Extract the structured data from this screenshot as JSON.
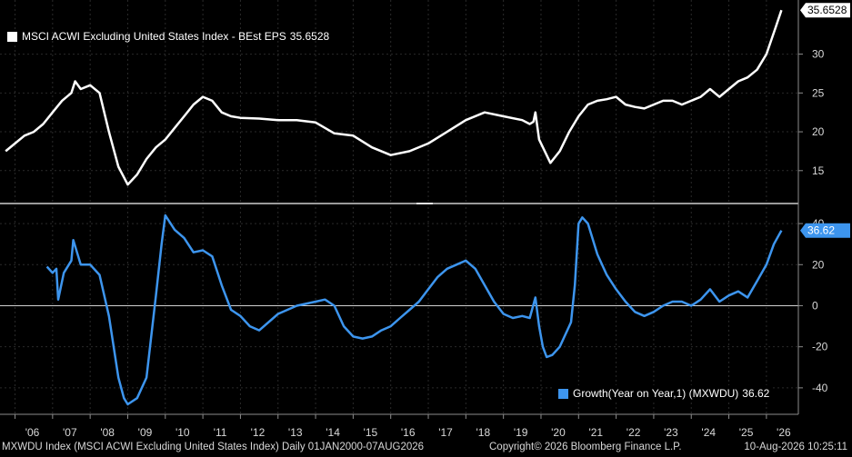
{
  "chart_data": [
    {
      "type": "line",
      "legend": {
        "label": "MSCI ACWI Excluding United States Index - BEst EPS",
        "value": "35.6528"
      },
      "last_value_label": "35.6528",
      "y_ticks": [
        "15",
        "20",
        "25",
        "30"
      ],
      "ylim": [
        11,
        36.5
      ],
      "color": "#ffffff",
      "series": [
        {
          "name": "MSCI ACWI Excluding United States Index - BEst EPS",
          "x": [
            2005.75,
            2006.0,
            2006.25,
            2006.5,
            2006.75,
            2007.0,
            2007.25,
            2007.5,
            2007.6,
            2007.75,
            2008.0,
            2008.25,
            2008.5,
            2008.75,
            2009.0,
            2009.25,
            2009.5,
            2009.75,
            2010.0,
            2010.25,
            2010.5,
            2010.75,
            2011.0,
            2011.25,
            2011.5,
            2011.75,
            2012.0,
            2012.5,
            2013.0,
            2013.5,
            2014.0,
            2014.5,
            2015.0,
            2015.5,
            2016.0,
            2016.5,
            2017.0,
            2017.5,
            2018.0,
            2018.5,
            2019.0,
            2019.5,
            2019.7,
            2019.8,
            2019.85,
            2019.95,
            2020.25,
            2020.5,
            2020.75,
            2021.0,
            2021.25,
            2021.5,
            2021.75,
            2022.0,
            2022.25,
            2022.5,
            2022.75,
            2023.0,
            2023.25,
            2023.5,
            2023.75,
            2024.0,
            2024.25,
            2024.5,
            2024.75,
            2025.0,
            2025.25,
            2025.5,
            2025.75,
            2026.0,
            2026.25,
            2026.4
          ],
          "values": [
            17.5,
            18.5,
            19.5,
            20.0,
            21.0,
            22.5,
            24.0,
            25.0,
            26.5,
            25.5,
            26.0,
            25.0,
            20.0,
            15.5,
            13.2,
            14.5,
            16.5,
            18.0,
            19.0,
            20.5,
            22.0,
            23.5,
            24.5,
            24.0,
            22.5,
            22.0,
            21.8,
            21.7,
            21.5,
            21.5,
            21.2,
            19.8,
            19.5,
            18.0,
            17.0,
            17.5,
            18.5,
            20.0,
            21.5,
            22.5,
            22.0,
            21.5,
            21.0,
            21.3,
            22.5,
            19.0,
            16.0,
            17.5,
            20.0,
            22.0,
            23.5,
            24.0,
            24.2,
            24.5,
            23.5,
            23.2,
            23.0,
            23.5,
            24.0,
            24.0,
            23.5,
            24.0,
            24.5,
            25.5,
            24.5,
            25.5,
            26.5,
            27.0,
            28.0,
            30.0,
            33.5,
            35.6528
          ]
        }
      ]
    },
    {
      "type": "line",
      "legend": {
        "label": "Growth(Year on Year,1) (MXWDU)",
        "value": "36.62"
      },
      "last_value_label": "36.62",
      "y_ticks": [
        "40",
        "20",
        "0",
        "-20",
        "-40"
      ],
      "ylim": [
        -52,
        48
      ],
      "color": "#3d95ee",
      "series": [
        {
          "name": "Growth(Year on Year,1) (MXWDU)",
          "x": [
            2006.85,
            2007.0,
            2007.1,
            2007.15,
            2007.3,
            2007.5,
            2007.55,
            2007.75,
            2008.0,
            2008.25,
            2008.5,
            2008.75,
            2008.9,
            2009.0,
            2009.25,
            2009.5,
            2009.75,
            2009.9,
            2010.0,
            2010.25,
            2010.5,
            2010.75,
            2011.0,
            2011.25,
            2011.5,
            2011.75,
            2012.0,
            2012.25,
            2012.5,
            2013.0,
            2013.5,
            2014.0,
            2014.25,
            2014.5,
            2014.75,
            2015.0,
            2015.25,
            2015.5,
            2015.75,
            2016.0,
            2016.25,
            2016.5,
            2016.75,
            2017.0,
            2017.25,
            2017.5,
            2017.75,
            2018.0,
            2018.25,
            2018.5,
            2018.75,
            2019.0,
            2019.25,
            2019.5,
            2019.7,
            2019.85,
            2019.95,
            2020.05,
            2020.15,
            2020.3,
            2020.5,
            2020.7,
            2020.8,
            2020.9,
            2021.0,
            2021.1,
            2021.25,
            2021.5,
            2021.75,
            2022.0,
            2022.25,
            2022.5,
            2022.75,
            2023.0,
            2023.25,
            2023.5,
            2023.75,
            2024.0,
            2024.25,
            2024.5,
            2024.75,
            2025.0,
            2025.25,
            2025.5,
            2025.75,
            2026.0,
            2026.2,
            2026.4
          ],
          "values": [
            19.0,
            16.0,
            18.0,
            3.0,
            16.0,
            22.0,
            32.0,
            20.0,
            20.0,
            15.0,
            -5.0,
            -35.0,
            -45.0,
            -48.0,
            -45.0,
            -35.0,
            5.0,
            30.0,
            44.0,
            37.0,
            33.0,
            26.0,
            27.0,
            24.0,
            10.0,
            -2.0,
            -5.0,
            -10.0,
            -12.0,
            -4.0,
            0.0,
            2.0,
            3.0,
            0.0,
            -10.0,
            -15.0,
            -16.0,
            -15.0,
            -12.0,
            -10.0,
            -6.0,
            -2.0,
            2.0,
            8.0,
            14.0,
            18.0,
            20.0,
            22.0,
            18.0,
            10.0,
            2.0,
            -4.0,
            -6.0,
            -5.0,
            -6.0,
            4.0,
            -10.0,
            -20.0,
            -25.0,
            -24.0,
            -20.0,
            -12.0,
            -8.0,
            10.0,
            40.0,
            43.0,
            40.0,
            25.0,
            15.0,
            8.0,
            2.0,
            -3.0,
            -5.0,
            -3.0,
            0.0,
            2.0,
            2.0,
            0.0,
            3.0,
            8.0,
            2.0,
            5.0,
            7.0,
            4.0,
            12.0,
            20.0,
            30.0,
            36.62
          ]
        }
      ]
    }
  ],
  "x_axis": {
    "tick_labels": [
      "'06",
      "'07",
      "'08",
      "'09",
      "'10",
      "'11",
      "'12",
      "'13",
      "'14",
      "'15",
      "'16",
      "'17",
      "'18",
      "'19",
      "'20",
      "'21",
      "'22",
      "'23",
      "'24",
      "'25",
      "'26"
    ],
    "tick_years": [
      2006,
      2007,
      2008,
      2009,
      2010,
      2011,
      2012,
      2013,
      2014,
      2015,
      2016,
      2017,
      2018,
      2019,
      2020,
      2021,
      2022,
      2023,
      2024,
      2025,
      2026
    ]
  },
  "footer": {
    "left": "MXWDU Index (MSCI ACWI Excluding United States Index) Daily 01JAN2000-07AUG2026",
    "middle": "Copyright© 2026 Bloomberg Finance L.P.",
    "right": "10-Aug-2026  10:25:11"
  }
}
